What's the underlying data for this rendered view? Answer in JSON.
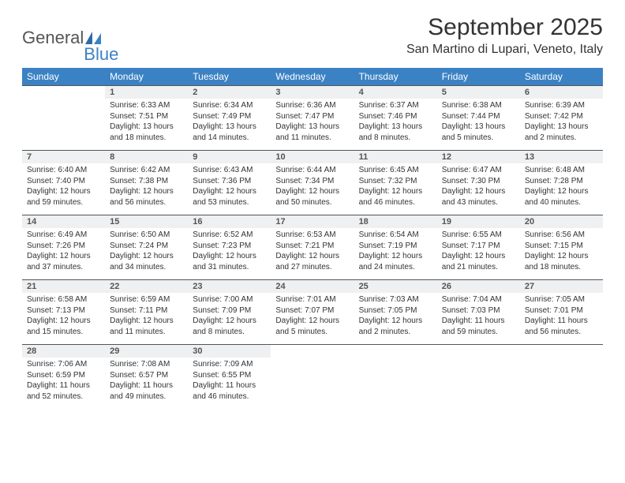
{
  "logo": {
    "text1": "General",
    "text2": "Blue"
  },
  "title": "September 2025",
  "location": "San Martino di Lupari, Veneto, Italy",
  "colors": {
    "header_bg": "#3b82c4",
    "header_fg": "#ffffff",
    "daynum_bg": "#eef0f2",
    "daynum_border": "#555555",
    "text": "#333333",
    "logo_blue": "#3b82c4",
    "logo_gray": "#555555"
  },
  "weekdays": [
    "Sunday",
    "Monday",
    "Tuesday",
    "Wednesday",
    "Thursday",
    "Friday",
    "Saturday"
  ],
  "weeks": [
    [
      null,
      {
        "n": "1",
        "sr": "Sunrise: 6:33 AM",
        "ss": "Sunset: 7:51 PM",
        "d1": "Daylight: 13 hours",
        "d2": "and 18 minutes."
      },
      {
        "n": "2",
        "sr": "Sunrise: 6:34 AM",
        "ss": "Sunset: 7:49 PM",
        "d1": "Daylight: 13 hours",
        "d2": "and 14 minutes."
      },
      {
        "n": "3",
        "sr": "Sunrise: 6:36 AM",
        "ss": "Sunset: 7:47 PM",
        "d1": "Daylight: 13 hours",
        "d2": "and 11 minutes."
      },
      {
        "n": "4",
        "sr": "Sunrise: 6:37 AM",
        "ss": "Sunset: 7:46 PM",
        "d1": "Daylight: 13 hours",
        "d2": "and 8 minutes."
      },
      {
        "n": "5",
        "sr": "Sunrise: 6:38 AM",
        "ss": "Sunset: 7:44 PM",
        "d1": "Daylight: 13 hours",
        "d2": "and 5 minutes."
      },
      {
        "n": "6",
        "sr": "Sunrise: 6:39 AM",
        "ss": "Sunset: 7:42 PM",
        "d1": "Daylight: 13 hours",
        "d2": "and 2 minutes."
      }
    ],
    [
      {
        "n": "7",
        "sr": "Sunrise: 6:40 AM",
        "ss": "Sunset: 7:40 PM",
        "d1": "Daylight: 12 hours",
        "d2": "and 59 minutes."
      },
      {
        "n": "8",
        "sr": "Sunrise: 6:42 AM",
        "ss": "Sunset: 7:38 PM",
        "d1": "Daylight: 12 hours",
        "d2": "and 56 minutes."
      },
      {
        "n": "9",
        "sr": "Sunrise: 6:43 AM",
        "ss": "Sunset: 7:36 PM",
        "d1": "Daylight: 12 hours",
        "d2": "and 53 minutes."
      },
      {
        "n": "10",
        "sr": "Sunrise: 6:44 AM",
        "ss": "Sunset: 7:34 PM",
        "d1": "Daylight: 12 hours",
        "d2": "and 50 minutes."
      },
      {
        "n": "11",
        "sr": "Sunrise: 6:45 AM",
        "ss": "Sunset: 7:32 PM",
        "d1": "Daylight: 12 hours",
        "d2": "and 46 minutes."
      },
      {
        "n": "12",
        "sr": "Sunrise: 6:47 AM",
        "ss": "Sunset: 7:30 PM",
        "d1": "Daylight: 12 hours",
        "d2": "and 43 minutes."
      },
      {
        "n": "13",
        "sr": "Sunrise: 6:48 AM",
        "ss": "Sunset: 7:28 PM",
        "d1": "Daylight: 12 hours",
        "d2": "and 40 minutes."
      }
    ],
    [
      {
        "n": "14",
        "sr": "Sunrise: 6:49 AM",
        "ss": "Sunset: 7:26 PM",
        "d1": "Daylight: 12 hours",
        "d2": "and 37 minutes."
      },
      {
        "n": "15",
        "sr": "Sunrise: 6:50 AM",
        "ss": "Sunset: 7:24 PM",
        "d1": "Daylight: 12 hours",
        "d2": "and 34 minutes."
      },
      {
        "n": "16",
        "sr": "Sunrise: 6:52 AM",
        "ss": "Sunset: 7:23 PM",
        "d1": "Daylight: 12 hours",
        "d2": "and 31 minutes."
      },
      {
        "n": "17",
        "sr": "Sunrise: 6:53 AM",
        "ss": "Sunset: 7:21 PM",
        "d1": "Daylight: 12 hours",
        "d2": "and 27 minutes."
      },
      {
        "n": "18",
        "sr": "Sunrise: 6:54 AM",
        "ss": "Sunset: 7:19 PM",
        "d1": "Daylight: 12 hours",
        "d2": "and 24 minutes."
      },
      {
        "n": "19",
        "sr": "Sunrise: 6:55 AM",
        "ss": "Sunset: 7:17 PM",
        "d1": "Daylight: 12 hours",
        "d2": "and 21 minutes."
      },
      {
        "n": "20",
        "sr": "Sunrise: 6:56 AM",
        "ss": "Sunset: 7:15 PM",
        "d1": "Daylight: 12 hours",
        "d2": "and 18 minutes."
      }
    ],
    [
      {
        "n": "21",
        "sr": "Sunrise: 6:58 AM",
        "ss": "Sunset: 7:13 PM",
        "d1": "Daylight: 12 hours",
        "d2": "and 15 minutes."
      },
      {
        "n": "22",
        "sr": "Sunrise: 6:59 AM",
        "ss": "Sunset: 7:11 PM",
        "d1": "Daylight: 12 hours",
        "d2": "and 11 minutes."
      },
      {
        "n": "23",
        "sr": "Sunrise: 7:00 AM",
        "ss": "Sunset: 7:09 PM",
        "d1": "Daylight: 12 hours",
        "d2": "and 8 minutes."
      },
      {
        "n": "24",
        "sr": "Sunrise: 7:01 AM",
        "ss": "Sunset: 7:07 PM",
        "d1": "Daylight: 12 hours",
        "d2": "and 5 minutes."
      },
      {
        "n": "25",
        "sr": "Sunrise: 7:03 AM",
        "ss": "Sunset: 7:05 PM",
        "d1": "Daylight: 12 hours",
        "d2": "and 2 minutes."
      },
      {
        "n": "26",
        "sr": "Sunrise: 7:04 AM",
        "ss": "Sunset: 7:03 PM",
        "d1": "Daylight: 11 hours",
        "d2": "and 59 minutes."
      },
      {
        "n": "27",
        "sr": "Sunrise: 7:05 AM",
        "ss": "Sunset: 7:01 PM",
        "d1": "Daylight: 11 hours",
        "d2": "and 56 minutes."
      }
    ],
    [
      {
        "n": "28",
        "sr": "Sunrise: 7:06 AM",
        "ss": "Sunset: 6:59 PM",
        "d1": "Daylight: 11 hours",
        "d2": "and 52 minutes."
      },
      {
        "n": "29",
        "sr": "Sunrise: 7:08 AM",
        "ss": "Sunset: 6:57 PM",
        "d1": "Daylight: 11 hours",
        "d2": "and 49 minutes."
      },
      {
        "n": "30",
        "sr": "Sunrise: 7:09 AM",
        "ss": "Sunset: 6:55 PM",
        "d1": "Daylight: 11 hours",
        "d2": "and 46 minutes."
      },
      null,
      null,
      null,
      null
    ]
  ]
}
